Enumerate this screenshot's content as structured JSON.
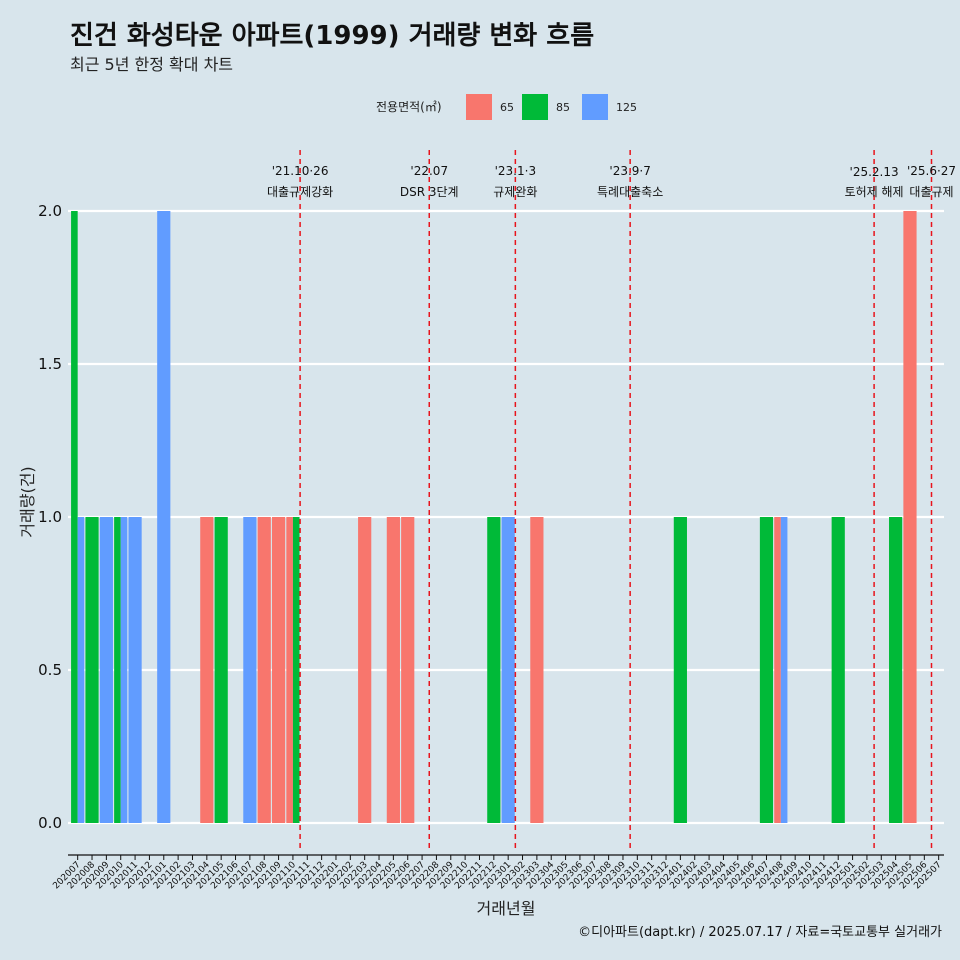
{
  "title": "진건 화성타운 아파트(1999) 거래량 변화 흐름",
  "subtitle": "최근 5년 한정 확대 차트",
  "caption": "©디아파트(dapt.kr) / 2025.07.17 / 자료=국토교통부 실거래가",
  "legend": {
    "title": "전용면적(㎡)",
    "items": [
      {
        "label": "65",
        "color": "#f8766d"
      },
      {
        "label": "85",
        "color": "#00ba38"
      },
      {
        "label": "125",
        "color": "#619cff"
      }
    ]
  },
  "chart_data": {
    "type": "bar",
    "xlabel": "거래년월",
    "ylabel": "거래량(건)",
    "ylim": [
      0,
      2
    ],
    "yticks": [
      "0.0",
      "0.5",
      "1.0",
      "1.5",
      "2.0"
    ],
    "grid": true,
    "legend_position": "top",
    "categories": [
      "202007",
      "202008",
      "202009",
      "202010",
      "202011",
      "202012",
      "202101",
      "202102",
      "202103",
      "202104",
      "202105",
      "202106",
      "202107",
      "202108",
      "202109",
      "202110",
      "202111",
      "202112",
      "202201",
      "202202",
      "202203",
      "202204",
      "202205",
      "202206",
      "202207",
      "202208",
      "202209",
      "202210",
      "202211",
      "202212",
      "202301",
      "202302",
      "202303",
      "202304",
      "202305",
      "202306",
      "202307",
      "202308",
      "202309",
      "202310",
      "202311",
      "202312",
      "202401",
      "202402",
      "202403",
      "202404",
      "202405",
      "202406",
      "202407",
      "202408",
      "202409",
      "202410",
      "202411",
      "202412",
      "202501",
      "202502",
      "202503",
      "202504",
      "202505",
      "202506",
      "202507"
    ],
    "series": [
      {
        "name": "65",
        "color": "#f8766d",
        "values": [
          0,
          0,
          0,
          0,
          0,
          0,
          0,
          0,
          0,
          1,
          0,
          0,
          0,
          1,
          1,
          1,
          0,
          0,
          0,
          0,
          1,
          0,
          1,
          1,
          0,
          0,
          0,
          0,
          0,
          0,
          0,
          0,
          1,
          0,
          0,
          0,
          0,
          0,
          0,
          0,
          0,
          0,
          0,
          0,
          0,
          0,
          0,
          0,
          0,
          1,
          0,
          0,
          0,
          0,
          0,
          0,
          0,
          0,
          2,
          0,
          0
        ]
      },
      {
        "name": "85",
        "color": "#00ba38",
        "values": [
          2,
          1,
          0,
          1,
          0,
          0,
          0,
          0,
          0,
          0,
          1,
          0,
          0,
          0,
          0,
          1,
          0,
          0,
          0,
          0,
          0,
          0,
          0,
          0,
          0,
          0,
          0,
          0,
          0,
          1,
          0,
          0,
          0,
          0,
          0,
          0,
          0,
          0,
          0,
          0,
          0,
          0,
          1,
          0,
          0,
          0,
          0,
          0,
          1,
          0,
          0,
          0,
          0,
          1,
          0,
          0,
          0,
          1,
          0,
          0,
          0
        ]
      },
      {
        "name": "125",
        "color": "#619cff",
        "values": [
          1,
          0,
          1,
          1,
          1,
          0,
          2,
          0,
          0,
          0,
          0,
          0,
          1,
          0,
          0,
          0,
          0,
          0,
          0,
          0,
          0,
          0,
          0,
          0,
          0,
          0,
          0,
          0,
          0,
          0,
          1,
          0,
          0,
          0,
          0,
          0,
          0,
          0,
          0,
          0,
          0,
          0,
          0,
          0,
          0,
          0,
          0,
          0,
          0,
          1,
          0,
          0,
          0,
          0,
          0,
          0,
          0,
          0,
          0,
          0,
          0
        ]
      }
    ],
    "annotations": [
      {
        "date": "'21.10·26",
        "label": "대출규제강화",
        "after_index": 15.0
      },
      {
        "date": "'22.07",
        "label": "DSR 3단계",
        "after_index": 24.0
      },
      {
        "date": "'23.1·3",
        "label": "규제완화",
        "after_index": 30.0
      },
      {
        "date": "'23.9·7",
        "label": "특례대출축소",
        "after_index": 38.0
      },
      {
        "date": "'25.2.13",
        "label": "토허제 해제",
        "after_index": 55.0
      },
      {
        "date": "'25.6·27",
        "label": "대출규제",
        "after_index": 59.0
      }
    ]
  }
}
